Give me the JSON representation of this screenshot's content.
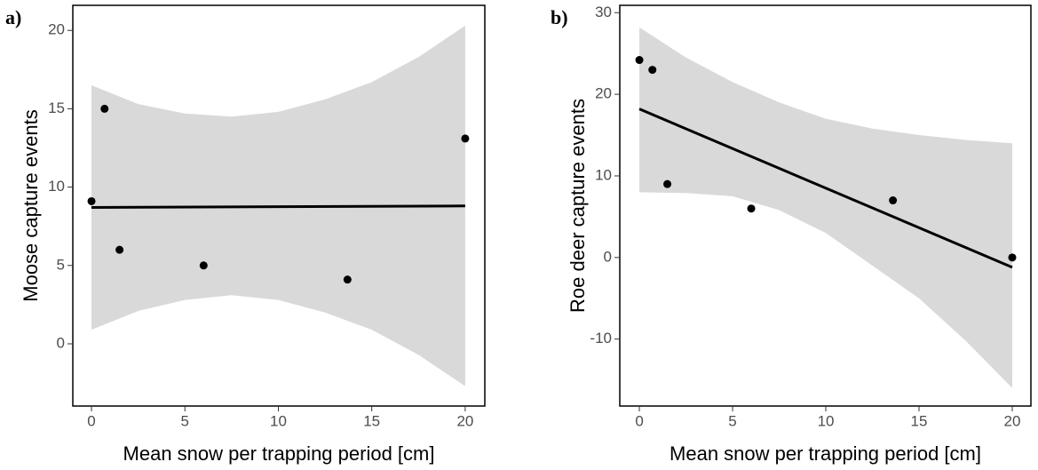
{
  "chart_data": [
    {
      "type": "scatter",
      "panel_label": "a)",
      "x_label": "Mean snow per trapping period [cm]",
      "y_label": "Moose capture events",
      "xlim": [
        -1,
        21.05
      ],
      "ylim": [
        -3.97,
        21.6
      ],
      "xticks": [
        0,
        5,
        10,
        15,
        20
      ],
      "yticks": [
        0,
        5,
        10,
        15,
        20
      ],
      "points": {
        "color": "#000000",
        "x": [
          0,
          0.7,
          1.5,
          6,
          13.7,
          20
        ],
        "values": [
          9.1,
          15,
          6,
          5,
          4.1,
          13.1
        ]
      },
      "fit": {
        "color": "#000000",
        "x": [
          0,
          20
        ],
        "values": [
          8.7,
          8.8
        ]
      },
      "band": {
        "color": "#d9d9d9",
        "x": [
          0,
          2.5,
          5,
          7.5,
          10,
          12.5,
          15,
          17.5,
          20
        ],
        "upper": [
          16.5,
          15.3,
          14.7,
          14.5,
          14.8,
          15.6,
          16.7,
          18.3,
          20.3
        ],
        "lower": [
          0.9,
          2.1,
          2.8,
          3.1,
          2.8,
          2.0,
          0.9,
          -0.7,
          -2.7
        ]
      }
    },
    {
      "type": "scatter",
      "panel_label": "b)",
      "x_label": "Mean snow per trapping period [cm]",
      "y_label": "Roe deer capture events",
      "xlim": [
        -1.05,
        21
      ],
      "ylim": [
        -18.2,
        30.9
      ],
      "xticks": [
        0,
        5,
        10,
        15,
        20
      ],
      "yticks": [
        -10,
        0,
        10,
        20,
        30
      ],
      "points": {
        "color": "#000000",
        "x": [
          0,
          0.7,
          1.5,
          6,
          13.6,
          20
        ],
        "values": [
          24.2,
          23,
          9,
          6,
          7,
          0
        ]
      },
      "fit": {
        "color": "#000000",
        "x": [
          0,
          20
        ],
        "values": [
          18.2,
          -1.2
        ]
      },
      "band": {
        "color": "#d9d9d9",
        "x": [
          0,
          2.5,
          5,
          7.5,
          10,
          12.5,
          15,
          17.5,
          20
        ],
        "upper": [
          28.2,
          24.5,
          21.5,
          19,
          17,
          15.8,
          15,
          14.4,
          14
        ],
        "lower": [
          8.0,
          7.9,
          7.5,
          5.8,
          3,
          -1,
          -5,
          -10.2,
          -16
        ]
      }
    }
  ]
}
